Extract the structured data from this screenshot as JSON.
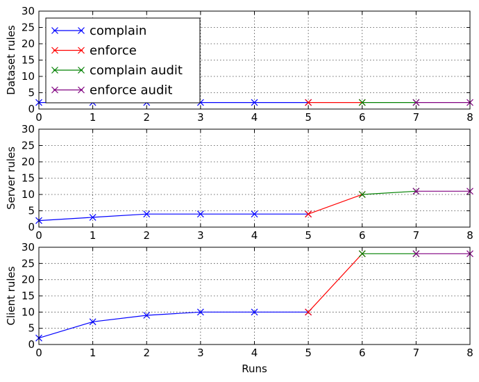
{
  "chart_data": [
    {
      "type": "line",
      "ylabel": "Dataset rules",
      "xlim": [
        0,
        8
      ],
      "ylim": [
        0,
        30
      ],
      "xticks": [
        0,
        1,
        2,
        3,
        4,
        5,
        6,
        7,
        8
      ],
      "yticks": [
        0,
        5,
        10,
        15,
        20,
        25,
        30
      ],
      "grid": true,
      "legend": "top-left",
      "series": [
        {
          "name": "complain",
          "color": "#0000ff",
          "x": [
            0,
            1,
            2,
            3,
            4,
            5
          ],
          "y": [
            2,
            2,
            2,
            2,
            2,
            2
          ]
        },
        {
          "name": "enforce",
          "color": "#ff0000",
          "x": [
            5,
            6
          ],
          "y": [
            2,
            2
          ]
        },
        {
          "name": "complain audit",
          "color": "#008000",
          "x": [
            6,
            7
          ],
          "y": [
            2,
            2
          ]
        },
        {
          "name": "enforce audit",
          "color": "#800080",
          "x": [
            7,
            8
          ],
          "y": [
            2,
            2
          ]
        }
      ]
    },
    {
      "type": "line",
      "ylabel": "Server rules",
      "xlim": [
        0,
        8
      ],
      "ylim": [
        0,
        30
      ],
      "xticks": [
        0,
        1,
        2,
        3,
        4,
        5,
        6,
        7,
        8
      ],
      "yticks": [
        0,
        5,
        10,
        15,
        20,
        25,
        30
      ],
      "grid": true,
      "series": [
        {
          "name": "complain",
          "color": "#0000ff",
          "x": [
            0,
            1,
            2,
            3,
            4,
            5
          ],
          "y": [
            2,
            3,
            4,
            4,
            4,
            4
          ]
        },
        {
          "name": "enforce",
          "color": "#ff0000",
          "x": [
            5,
            6
          ],
          "y": [
            4,
            10
          ]
        },
        {
          "name": "complain audit",
          "color": "#008000",
          "x": [
            6,
            7
          ],
          "y": [
            10,
            11
          ]
        },
        {
          "name": "enforce audit",
          "color": "#800080",
          "x": [
            7,
            8
          ],
          "y": [
            11,
            11
          ]
        }
      ]
    },
    {
      "type": "line",
      "ylabel": "Client rules",
      "xlabel": "Runs",
      "xlim": [
        0,
        8
      ],
      "ylim": [
        0,
        30
      ],
      "xticks": [
        0,
        1,
        2,
        3,
        4,
        5,
        6,
        7,
        8
      ],
      "yticks": [
        0,
        5,
        10,
        15,
        20,
        25,
        30
      ],
      "grid": true,
      "series": [
        {
          "name": "complain",
          "color": "#0000ff",
          "x": [
            0,
            1,
            2,
            3,
            4,
            5
          ],
          "y": [
            2,
            7,
            9,
            10,
            10,
            10
          ]
        },
        {
          "name": "enforce",
          "color": "#ff0000",
          "x": [
            5,
            6
          ],
          "y": [
            10,
            28
          ]
        },
        {
          "name": "complain audit",
          "color": "#008000",
          "x": [
            6,
            7
          ],
          "y": [
            28,
            28
          ]
        },
        {
          "name": "enforce audit",
          "color": "#800080",
          "x": [
            7,
            8
          ],
          "y": [
            28,
            28
          ]
        }
      ]
    }
  ]
}
